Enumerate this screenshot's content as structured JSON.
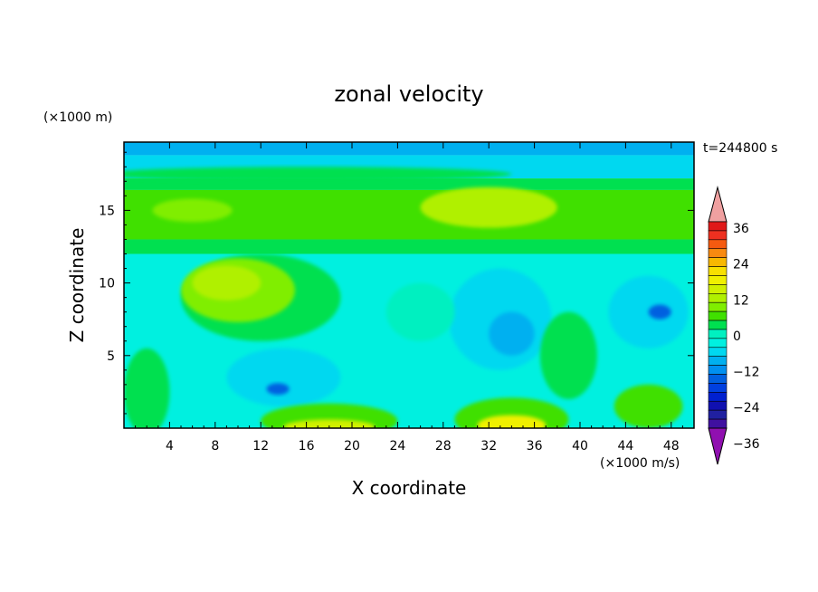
{
  "chart_data": {
    "type": "heatmap",
    "title": "zonal velocity",
    "xlabel": "X coordinate",
    "ylabel": "Z coordinate",
    "x_unit": "(×1000 m/s)",
    "y_unit": "(×1000 m)",
    "time_label": "t=244800 s",
    "xlim": [
      0,
      50
    ],
    "ylim": [
      0,
      19.7
    ],
    "x_ticks": [
      4,
      8,
      12,
      16,
      20,
      24,
      28,
      32,
      36,
      40,
      44,
      48
    ],
    "y_ticks": [
      5,
      10,
      15
    ],
    "colorbar": {
      "tick_labels": [
        "36",
        "24",
        "12",
        "0",
        "-12",
        "-24",
        "-36"
      ],
      "levels": [
        {
          "lo": 36,
          "color": "#f0a0a0"
        },
        {
          "lo": 33,
          "color": "#e01818"
        },
        {
          "lo": 30,
          "color": "#ee3020"
        },
        {
          "lo": 27,
          "color": "#f55a10"
        },
        {
          "lo": 24,
          "color": "#f88a10"
        },
        {
          "lo": 21,
          "color": "#f8b800"
        },
        {
          "lo": 18,
          "color": "#f8e000"
        },
        {
          "lo": 15,
          "color": "#f0f000"
        },
        {
          "lo": 12,
          "color": "#d0f000"
        },
        {
          "lo": 9,
          "color": "#b0f000"
        },
        {
          "lo": 6,
          "color": "#80ee00"
        },
        {
          "lo": 3,
          "color": "#40e000"
        },
        {
          "lo": 0,
          "color": "#00e050"
        },
        {
          "lo": -3,
          "color": "#00f0c0"
        },
        {
          "lo": -6,
          "color": "#00f0e0"
        },
        {
          "lo": -9,
          "color": "#00d8f0"
        },
        {
          "lo": -12,
          "color": "#00b0f0"
        },
        {
          "lo": -15,
          "color": "#0090f0"
        },
        {
          "lo": -18,
          "color": "#0060e0"
        },
        {
          "lo": -21,
          "color": "#0040e0"
        },
        {
          "lo": -24,
          "color": "#0020d0"
        },
        {
          "lo": -27,
          "color": "#1010b0"
        },
        {
          "lo": -30,
          "color": "#2020a0"
        },
        {
          "lo": -33,
          "color": "#4010a0"
        },
        {
          "lo": -36,
          "color": "#9010b0"
        }
      ]
    },
    "field_bands": [
      {
        "z0": 18.8,
        "z1": 19.7,
        "value": -10
      },
      {
        "z0": 17.2,
        "z1": 18.8,
        "value": -7
      },
      {
        "z0": 16.4,
        "z1": 17.2,
        "value": 1
      },
      {
        "z0": 13.0,
        "z1": 16.4,
        "value": 4
      },
      {
        "z0": 12.0,
        "z1": 13.0,
        "value": 1
      },
      {
        "z0": 0,
        "z1": 12.0,
        "value": -5
      }
    ],
    "field_patches": [
      {
        "x": 32,
        "z": 15.2,
        "rx": 6,
        "rz": 1.4,
        "value": 9
      },
      {
        "x": 6,
        "z": 15.0,
        "rx": 3.5,
        "rz": 0.8,
        "value": 8
      },
      {
        "x": 16,
        "z": 17.5,
        "rx": 18,
        "rz": 0.5,
        "value": 2
      },
      {
        "x": 12,
        "z": 9,
        "rx": 7,
        "rz": 3,
        "value": 2
      },
      {
        "x": 10,
        "z": 9.5,
        "rx": 5,
        "rz": 2.2,
        "value": 6
      },
      {
        "x": 9,
        "z": 10,
        "rx": 3,
        "rz": 1.2,
        "value": 9
      },
      {
        "x": 33,
        "z": 7.5,
        "rx": 4.5,
        "rz": 3.5,
        "value": -8
      },
      {
        "x": 34,
        "z": 6.5,
        "rx": 2,
        "rz": 1.5,
        "value": -11
      },
      {
        "x": 46,
        "z": 8,
        "rx": 3.5,
        "rz": 2.5,
        "value": -8
      },
      {
        "x": 47,
        "z": 8,
        "rx": 1,
        "rz": 0.5,
        "value": -16
      },
      {
        "x": 14,
        "z": 3.5,
        "rx": 5,
        "rz": 2,
        "value": -8
      },
      {
        "x": 13.5,
        "z": 2.7,
        "rx": 1,
        "rz": 0.4,
        "value": -16
      },
      {
        "x": 39,
        "z": 5,
        "rx": 2.5,
        "rz": 3,
        "value": 1
      },
      {
        "x": 18,
        "z": 0.5,
        "rx": 6,
        "rz": 1.2,
        "value": 4
      },
      {
        "x": 18,
        "z": 0.1,
        "rx": 4,
        "rz": 0.5,
        "value": 14
      },
      {
        "x": 34,
        "z": 0.6,
        "rx": 5,
        "rz": 1.5,
        "value": 4
      },
      {
        "x": 34,
        "z": 0.2,
        "rx": 3,
        "rz": 0.7,
        "value": 16
      },
      {
        "x": 46,
        "z": 1.5,
        "rx": 3,
        "rz": 1.5,
        "value": 3
      },
      {
        "x": 2,
        "z": 2.5,
        "rx": 2,
        "rz": 3,
        "value": 1
      },
      {
        "x": 26,
        "z": 8,
        "rx": 3,
        "rz": 2,
        "value": -1
      }
    ]
  }
}
